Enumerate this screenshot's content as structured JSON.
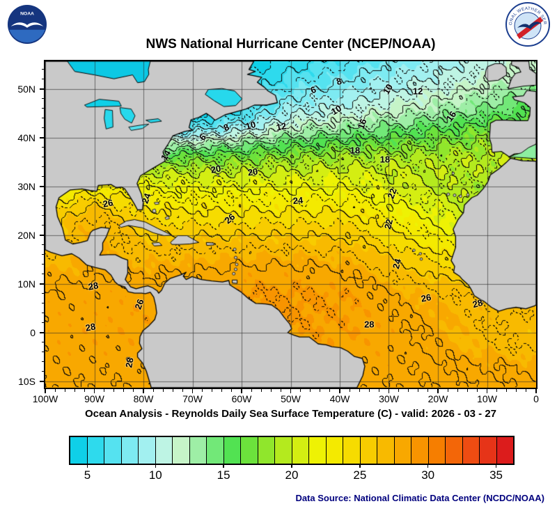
{
  "header": {
    "title": "NWS National Hurricane Center (NCEP/NOAA)",
    "noaa_logo_text": "NOAA",
    "nws_logo_text": "NATIONAL WEATHER SERVICE"
  },
  "footer": {
    "subtitle": "Ocean Analysis - Reynolds Daily Sea Surface Temperature (C) - valid: 2026 - 03 - 27",
    "data_source": "Data Source: National Climatic Data Center (NCDC/NOAA)"
  },
  "axes": {
    "lat_ticks": [
      {
        "label": "50N",
        "deg": 50
      },
      {
        "label": "40N",
        "deg": 40
      },
      {
        "label": "30N",
        "deg": 30
      },
      {
        "label": "20N",
        "deg": 20
      },
      {
        "label": "10N",
        "deg": 10
      },
      {
        "label": "0",
        "deg": 0
      },
      {
        "label": "10S",
        "deg": -10
      }
    ],
    "lon_ticks": [
      {
        "label": "100W",
        "deg": -100
      },
      {
        "label": "90W",
        "deg": -90
      },
      {
        "label": "80W",
        "deg": -80
      },
      {
        "label": "70W",
        "deg": -70
      },
      {
        "label": "60W",
        "deg": -60
      },
      {
        "label": "50W",
        "deg": -50
      },
      {
        "label": "40W",
        "deg": -40
      },
      {
        "label": "30W",
        "deg": -30
      },
      {
        "label": "20W",
        "deg": -20
      },
      {
        "label": "10W",
        "deg": -10
      },
      {
        "label": "0",
        "deg": 0
      }
    ]
  },
  "chart_data": {
    "type": "heatmap",
    "variable": "Reynolds Daily Sea Surface Temperature",
    "units": "C",
    "valid": "2026 - 03 - 27",
    "lon_range": [
      -100,
      0
    ],
    "lat_range": [
      -11.3,
      55.7
    ],
    "grid_interval_deg": 10,
    "contour_interval": 1,
    "land_color": "#c9c9c9",
    "labeled_isotherms": [
      6,
      8,
      10,
      12,
      14,
      16,
      18,
      20,
      22,
      24,
      26,
      28
    ],
    "colorbar": {
      "min": 3.75,
      "max": 36.25,
      "step": 1.25,
      "tick_labels": [
        "5",
        "10",
        "15",
        "20",
        "25",
        "30",
        "35"
      ],
      "tick_values": [
        5,
        10,
        15,
        20,
        25,
        30,
        35
      ],
      "segment_colors": [
        "#0fd0e8",
        "#2edaed",
        "#55e2f0",
        "#7deaf2",
        "#a2f0f0",
        "#bef4e4",
        "#c6f4c8",
        "#9eeea6",
        "#72e878",
        "#52e252",
        "#6ce23c",
        "#90e62c",
        "#b4ea1e",
        "#d4ee12",
        "#eef204",
        "#f4ea00",
        "#f6dc00",
        "#f8cc00",
        "#f8ba00",
        "#f8a800",
        "#f89400",
        "#f67e00",
        "#f36608",
        "#ee4c12",
        "#e63418",
        "#dc1c1c"
      ]
    },
    "contour_labels": [
      {
        "v": "6",
        "lon": -45.4,
        "lat": 49.8,
        "rot": -20
      },
      {
        "v": "8",
        "lon": -40.1,
        "lat": 51.6,
        "rot": -15
      },
      {
        "v": "10",
        "lon": -30.2,
        "lat": 50.0,
        "rot": -60
      },
      {
        "v": "12",
        "lon": -24.1,
        "lat": 49.6,
        "rot": 0
      },
      {
        "v": "6",
        "lon": -67.9,
        "lat": 40.1,
        "rot": -45
      },
      {
        "v": "8",
        "lon": -63.1,
        "lat": 42.1,
        "rot": -25
      },
      {
        "v": "10",
        "lon": -58.2,
        "lat": 42.6,
        "rot": -15
      },
      {
        "v": "12",
        "lon": -51.9,
        "lat": 42.3,
        "rot": -10
      },
      {
        "v": "10",
        "lon": -40.7,
        "lat": 45.7,
        "rot": -30
      },
      {
        "v": "16",
        "lon": -35.5,
        "lat": 42.9,
        "rot": -70
      },
      {
        "v": "16",
        "lon": -17.3,
        "lat": 44.4,
        "rot": -55
      },
      {
        "v": "14",
        "lon": -75.5,
        "lat": 36.4,
        "rot": -60
      },
      {
        "v": "18",
        "lon": -36.9,
        "lat": 37.4,
        "rot": 0
      },
      {
        "v": "18",
        "lon": -30.8,
        "lat": 35.6,
        "rot": 0
      },
      {
        "v": "20",
        "lon": -65.2,
        "lat": 33.6,
        "rot": -10
      },
      {
        "v": "20",
        "lon": -57.7,
        "lat": 33.0,
        "rot": -8
      },
      {
        "v": "22",
        "lon": -29.4,
        "lat": 28.6,
        "rot": -70
      },
      {
        "v": "22",
        "lon": -30.1,
        "lat": 22.3,
        "rot": -75
      },
      {
        "v": "24",
        "lon": -48.5,
        "lat": 27.1,
        "rot": -5
      },
      {
        "v": "24",
        "lon": -79.4,
        "lat": 27.6,
        "rot": -70
      },
      {
        "v": "26",
        "lon": -87.2,
        "lat": 26.6,
        "rot": -10
      },
      {
        "v": "26",
        "lon": -62.4,
        "lat": 23.4,
        "rot": -40
      },
      {
        "v": "24",
        "lon": -28.4,
        "lat": 14.1,
        "rot": -75
      },
      {
        "v": "26",
        "lon": -22.4,
        "lat": 7.1,
        "rot": -10
      },
      {
        "v": "28",
        "lon": -11.9,
        "lat": 6.0,
        "rot": -15
      },
      {
        "v": "28",
        "lon": -34.0,
        "lat": 1.7,
        "rot": 0
      },
      {
        "v": "28",
        "lon": -90.2,
        "lat": 9.6,
        "rot": -10
      },
      {
        "v": "26",
        "lon": -80.9,
        "lat": 5.9,
        "rot": -70
      },
      {
        "v": "28",
        "lon": -90.8,
        "lat": 1.1,
        "rot": -10
      },
      {
        "v": "28",
        "lon": -82.8,
        "lat": -6.2,
        "rot": -80
      }
    ]
  }
}
